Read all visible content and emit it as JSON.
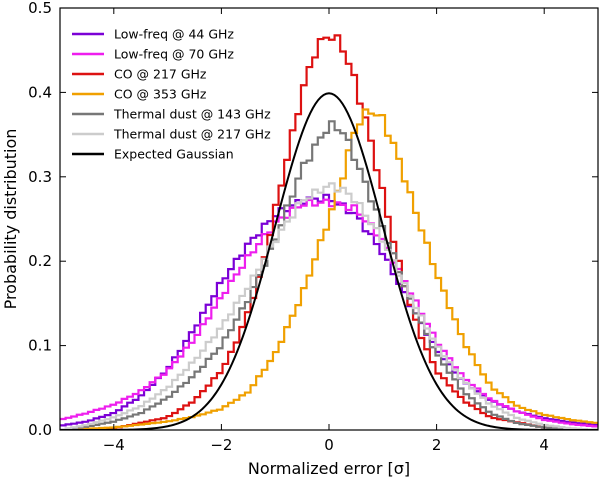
{
  "chart_data": {
    "type": "line",
    "style": "step-histogram",
    "xlabel": "Normalized error [σ]",
    "ylabel": "Probability distribution",
    "xlim": [
      -5,
      5
    ],
    "ylim": [
      0,
      0.5
    ],
    "xticks": [
      -4,
      -2,
      0,
      2,
      4
    ],
    "xtick_labels": [
      "−4",
      "−2",
      "0",
      "2",
      "4"
    ],
    "yticks": [
      0.0,
      0.1,
      0.2,
      0.3,
      0.4,
      0.5
    ],
    "ytick_labels": [
      "0.0",
      "0.1",
      "0.2",
      "0.3",
      "0.4",
      "0.5"
    ],
    "grid": false,
    "legend_position": "top-left",
    "series": [
      {
        "name": "Low-freq @ 44 GHz",
        "color": "#7b00d6",
        "kind": "step",
        "x": [
          -5,
          -4.5,
          -4,
          -3.5,
          -3,
          -2.5,
          -2,
          -1.5,
          -1,
          -0.5,
          0,
          0.5,
          1,
          1.5,
          2,
          2.5,
          3,
          3.5,
          4,
          4.5,
          5
        ],
        "y": [
          0.005,
          0.01,
          0.02,
          0.04,
          0.072,
          0.12,
          0.175,
          0.22,
          0.255,
          0.272,
          0.275,
          0.255,
          0.21,
          0.15,
          0.095,
          0.057,
          0.035,
          0.022,
          0.014,
          0.009,
          0.006
        ]
      },
      {
        "name": "Low-freq @ 70 GHz",
        "color": "#ee1eee",
        "kind": "step",
        "x": [
          -5,
          -4.5,
          -4,
          -3.5,
          -3,
          -2.5,
          -2,
          -1.5,
          -1,
          -0.5,
          0,
          0.5,
          1,
          1.5,
          2,
          2.5,
          3,
          3.5,
          4,
          4.5,
          5
        ],
        "y": [
          0.012,
          0.02,
          0.03,
          0.046,
          0.07,
          0.108,
          0.158,
          0.205,
          0.245,
          0.268,
          0.27,
          0.262,
          0.225,
          0.165,
          0.105,
          0.062,
          0.036,
          0.022,
          0.012,
          0.007,
          0.004
        ]
      },
      {
        "name": "CO @ 217 GHz",
        "color": "#dd1111",
        "kind": "step",
        "x": [
          -5,
          -4,
          -3,
          -2.5,
          -2,
          -1.75,
          -1.5,
          -1.25,
          -1,
          -0.75,
          -0.5,
          -0.25,
          0,
          0.25,
          0.5,
          0.75,
          1,
          1.25,
          1.5,
          1.75,
          2,
          2.5,
          3,
          4,
          5
        ],
        "y": [
          0.0,
          0.002,
          0.015,
          0.035,
          0.07,
          0.1,
          0.14,
          0.19,
          0.26,
          0.33,
          0.4,
          0.45,
          0.47,
          0.455,
          0.41,
          0.35,
          0.28,
          0.21,
          0.15,
          0.105,
          0.07,
          0.035,
          0.015,
          0.003,
          0.0
        ]
      },
      {
        "name": "CO @ 353 GHz",
        "color": "#f0a000",
        "kind": "step",
        "x": [
          -5,
          -4,
          -3,
          -2.5,
          -2,
          -1.5,
          -1,
          -0.5,
          0,
          0.25,
          0.5,
          0.75,
          1,
          1.25,
          1.5,
          2,
          2.5,
          3,
          3.5,
          4,
          4.5,
          5
        ],
        "y": [
          0.0,
          0.003,
          0.01,
          0.016,
          0.025,
          0.045,
          0.09,
          0.16,
          0.25,
          0.3,
          0.36,
          0.38,
          0.368,
          0.33,
          0.28,
          0.185,
          0.105,
          0.052,
          0.028,
          0.018,
          0.012,
          0.008
        ]
      },
      {
        "name": "Thermal dust @ 143 GHz",
        "color": "#777777",
        "kind": "step",
        "x": [
          -5,
          -4.5,
          -4,
          -3.5,
          -3,
          -2.5,
          -2,
          -1.5,
          -1,
          -0.5,
          0,
          0.25,
          0.5,
          1,
          1.5,
          2,
          2.5,
          3,
          3.5,
          4,
          4.5,
          5
        ],
        "y": [
          0.0,
          0.004,
          0.01,
          0.02,
          0.038,
          0.065,
          0.1,
          0.155,
          0.225,
          0.31,
          0.362,
          0.355,
          0.32,
          0.24,
          0.155,
          0.09,
          0.045,
          0.02,
          0.008,
          0.003,
          0.001,
          0.0
        ]
      },
      {
        "name": "Thermal dust @ 217 GHz",
        "color": "#cccccc",
        "kind": "step",
        "x": [
          -5,
          -4.5,
          -4,
          -3.5,
          -3,
          -2.5,
          -2,
          -1.5,
          -1,
          -0.5,
          0,
          0.25,
          0.5,
          1,
          1.5,
          2,
          2.5,
          3,
          3.5,
          4,
          4.5,
          5
        ],
        "y": [
          0.0,
          0.006,
          0.015,
          0.028,
          0.05,
          0.082,
          0.122,
          0.17,
          0.225,
          0.272,
          0.29,
          0.285,
          0.272,
          0.225,
          0.16,
          0.1,
          0.058,
          0.03,
          0.014,
          0.006,
          0.002,
          0.0
        ]
      },
      {
        "name": "Expected Gaussian",
        "color": "#000000",
        "kind": "gaussian",
        "mean": 0,
        "sigma": 1
      }
    ]
  }
}
